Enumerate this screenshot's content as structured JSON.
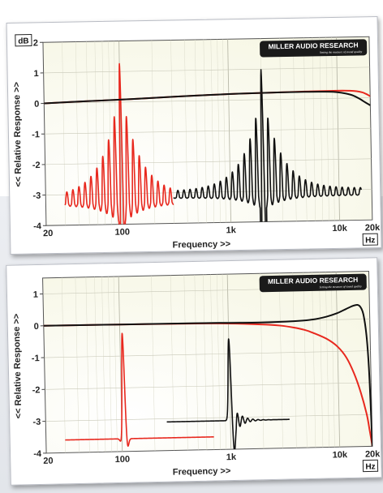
{
  "chart_data": [
    {
      "type": "line",
      "units_badge": "dB",
      "xunit_badge": "Hz",
      "logo": {
        "brand": "MILLER AUDIO RESEARCH",
        "tagline": "Setting the measure of sound quality"
      },
      "xlabel": "Frequency >>",
      "ylabel": "<< Relative Response >>",
      "xscale": "log",
      "xlim": [
        20,
        20000
      ],
      "ylim": [
        -4,
        2
      ],
      "x_ticks": [
        {
          "value": 20,
          "label": "20"
        },
        {
          "value": 100,
          "label": "100"
        },
        {
          "value": 1000,
          "label": "1k"
        },
        {
          "value": 10000,
          "label": "10k"
        },
        {
          "value": 20000,
          "label": "20k"
        }
      ],
      "y_ticks": [
        {
          "value": 2,
          "label": "2"
        },
        {
          "value": 1,
          "label": "1"
        },
        {
          "value": 0,
          "label": "0"
        },
        {
          "value": -1,
          "label": "-1"
        },
        {
          "value": -2,
          "label": "-2"
        },
        {
          "value": -3,
          "label": "-3"
        },
        {
          "value": -4,
          "label": "-4"
        }
      ],
      "grid": true,
      "colors": {
        "red": "#e8281e",
        "black": "#111111",
        "plot_bg": "#f7f7e6"
      },
      "series": [
        {
          "color": "#e8281e",
          "x": [
            20,
            50,
            100,
            200,
            500,
            1000,
            2000,
            5000,
            10000,
            13000,
            15000,
            17000,
            18000,
            19000,
            20000
          ],
          "y": [
            0.0,
            0.05,
            0.08,
            0.12,
            0.17,
            0.2,
            0.22,
            0.24,
            0.25,
            0.24,
            0.22,
            0.18,
            0.14,
            0.1,
            0.05
          ]
        },
        {
          "color": "#111111",
          "x": [
            20,
            50,
            100,
            200,
            500,
            1000,
            2000,
            5000,
            8000,
            10000,
            12000,
            14000,
            16000,
            18000,
            19000,
            20000
          ],
          "y": [
            0.0,
            0.05,
            0.08,
            0.12,
            0.17,
            0.2,
            0.22,
            0.23,
            0.22,
            0.2,
            0.15,
            0.08,
            -0.03,
            -0.15,
            -0.2,
            -0.25
          ]
        }
      ],
      "impulse_insets": [
        {
          "color": "#e8281e",
          "x_range": [
            30,
            300
          ],
          "baseline": -3.3,
          "peak": 1.0,
          "trough": -4.0,
          "center": 100,
          "style": "long-ringing"
        },
        {
          "color": "#111111",
          "x_range": [
            300,
            16000
          ],
          "baseline": -3.15,
          "peak": 0.75,
          "trough": -3.6,
          "center": 2000,
          "style": "long-ringing"
        }
      ]
    },
    {
      "type": "line",
      "xunit_badge": "Hz",
      "logo": {
        "brand": "MILLER AUDIO RESEARCH",
        "tagline": "Setting the measure of sound quality"
      },
      "xlabel": "Frequency >>",
      "ylabel": "<< Relative Response >>",
      "xscale": "log",
      "xlim": [
        20,
        20000
      ],
      "ylim": [
        -4,
        1.5
      ],
      "x_ticks": [
        {
          "value": 20,
          "label": "20"
        },
        {
          "value": 100,
          "label": "100"
        },
        {
          "value": 1000,
          "label": "1k"
        },
        {
          "value": 10000,
          "label": "10k"
        },
        {
          "value": 20000,
          "label": "20k"
        }
      ],
      "y_ticks": [
        {
          "value": 1,
          "label": "1"
        },
        {
          "value": 0,
          "label": "0"
        },
        {
          "value": -1,
          "label": "-1"
        },
        {
          "value": -2,
          "label": "-2"
        },
        {
          "value": -3,
          "label": "-3"
        },
        {
          "value": -4,
          "label": "-4"
        }
      ],
      "grid": true,
      "colors": {
        "red": "#e8281e",
        "black": "#111111",
        "plot_bg": "#f7f7e6"
      },
      "series": [
        {
          "color": "#e8281e",
          "x": [
            20,
            100,
            500,
            1000,
            2000,
            3000,
            4000,
            5000,
            6000,
            8000,
            10000,
            12000,
            14000,
            16000,
            18000,
            19000,
            20000
          ],
          "y": [
            0.0,
            -0.01,
            -0.03,
            -0.05,
            -0.1,
            -0.15,
            -0.22,
            -0.3,
            -0.4,
            -0.6,
            -0.85,
            -1.2,
            -1.7,
            -2.3,
            -3.0,
            -3.5,
            -4.0
          ]
        },
        {
          "color": "#111111",
          "x": [
            20,
            100,
            500,
            1000,
            2000,
            4000,
            6000,
            8000,
            10000,
            12000,
            14000,
            15500,
            16500,
            17500,
            18500,
            19200,
            19700,
            20000
          ],
          "y": [
            0.0,
            -0.01,
            -0.02,
            -0.03,
            -0.04,
            -0.02,
            0.02,
            0.1,
            0.2,
            0.32,
            0.42,
            0.45,
            0.38,
            0.15,
            -0.5,
            -1.5,
            -3.0,
            -4.2
          ]
        }
      ],
      "impulse_insets": [
        {
          "color": "#e8281e",
          "x_range": [
            30,
            700
          ],
          "baseline": -3.6,
          "peak": -0.25,
          "trough": -3.95,
          "center": 105,
          "style": "short"
        },
        {
          "color": "#111111",
          "x_range": [
            260,
            3500
          ],
          "baseline": -3.1,
          "peak": -0.45,
          "trough": -4.15,
          "center": 1000,
          "style": "short-tail"
        }
      ]
    }
  ]
}
